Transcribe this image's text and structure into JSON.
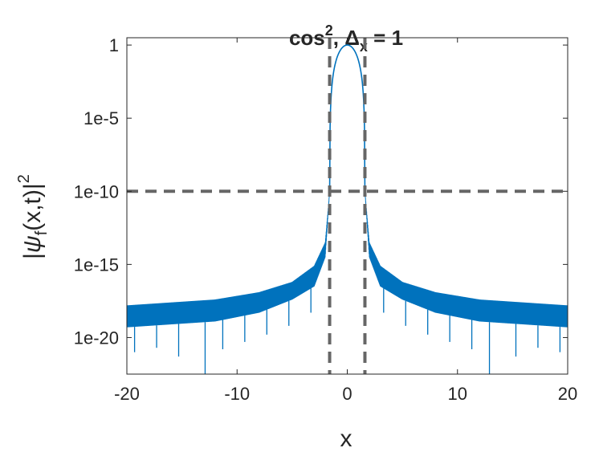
{
  "chart_data": {
    "type": "line",
    "title": {
      "prefix": "cos",
      "superscript": "2",
      "middle": ", Δ",
      "subscript": "x",
      "suffix": " = 1"
    },
    "xlabel": "x",
    "ylabel": {
      "open": "|",
      "psi": "ψ",
      "subscript": "f",
      "args": "(x,t)",
      "close": "|",
      "superscript": "2"
    },
    "xlim": [
      -20,
      20
    ],
    "ylim_log10": [
      -22.5,
      0.5
    ],
    "yscale": "log",
    "grid": false,
    "x_ticks": [
      {
        "value": -20,
        "label": "-20"
      },
      {
        "value": -10,
        "label": "-10"
      },
      {
        "value": 0,
        "label": "0"
      },
      {
        "value": 10,
        "label": "10"
      },
      {
        "value": 20,
        "label": "20"
      }
    ],
    "y_ticks": [
      {
        "log10": 0,
        "label": "1"
      },
      {
        "log10": -5,
        "label": "1e-5"
      },
      {
        "log10": -10,
        "label": "1e-10"
      },
      {
        "log10": -15,
        "label": "1e-15"
      },
      {
        "log10": -20,
        "label": "1e-20"
      }
    ],
    "series": [
      {
        "color": "#0072BD",
        "main_lobe_halfwidth": 1.6,
        "main_lobe_floor_log10": -10,
        "envelope_log10": {
          "x": [
            1.6,
            2,
            3,
            5,
            8,
            12,
            16,
            20
          ],
          "upper": [
            -10.0,
            -13.5,
            -15.1,
            -16.2,
            -16.9,
            -17.4,
            -17.6,
            -17.8
          ],
          "lower": [
            -10.0,
            -14.5,
            -16.5,
            -17.4,
            -18.3,
            -18.9,
            -19.1,
            -19.3
          ]
        },
        "deep_minima": [
          {
            "x": 3.3,
            "log10": -18.3
          },
          {
            "x": 5.3,
            "log10": -19.2
          },
          {
            "x": 7.3,
            "log10": -19.8
          },
          {
            "x": 9.3,
            "log10": -20.3
          },
          {
            "x": 11.3,
            "log10": -20.8
          },
          {
            "x": 12.9,
            "log10": -23.0
          },
          {
            "x": 15.3,
            "log10": -21.3
          },
          {
            "x": 17.3,
            "log10": -20.7
          },
          {
            "x": 19.3,
            "log10": -21.0
          }
        ]
      }
    ],
    "reference_lines": {
      "color": "#666666",
      "vertical_x": [
        -1.6,
        1.6
      ],
      "horizontal_log10": -10
    }
  }
}
